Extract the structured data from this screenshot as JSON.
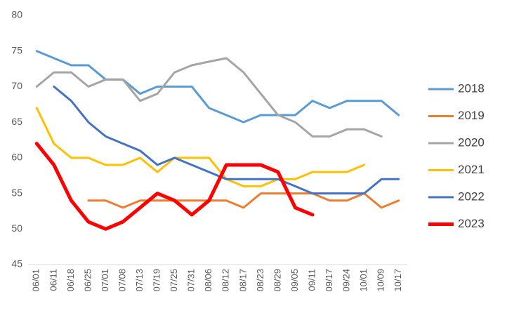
{
  "chart_data": {
    "type": "line",
    "categories": [
      "06/01",
      "06/11",
      "06/18",
      "06/25",
      "07/01",
      "07/08",
      "07/13",
      "07/19",
      "07/25",
      "07/31",
      "08/06",
      "08/12",
      "08/17",
      "08/23",
      "08/29",
      "09/05",
      "09/11",
      "09/17",
      "09/24",
      "10/01",
      "10/09",
      "10/17"
    ],
    "series": [
      {
        "name": "2018",
        "color": "#5b9bd5",
        "values": [
          75,
          74,
          73,
          73,
          71,
          71,
          69,
          70,
          70,
          70,
          67,
          66,
          65,
          66,
          66,
          66,
          68,
          67,
          68,
          68,
          68,
          66
        ]
      },
      {
        "name": "2019",
        "color": "#ed7d31",
        "values": [
          null,
          null,
          null,
          54,
          54,
          53,
          54,
          54,
          54,
          54,
          54,
          54,
          53,
          55,
          55,
          55,
          55,
          54,
          54,
          55,
          53,
          54
        ]
      },
      {
        "name": "2020",
        "color": "#a5a5a5",
        "values": [
          70,
          72,
          72,
          70,
          71,
          71,
          68,
          69,
          72,
          73,
          73.5,
          74,
          72,
          69,
          66,
          65,
          63,
          63,
          64,
          64,
          63,
          null
        ]
      },
      {
        "name": "2021",
        "color": "#ffc000",
        "values": [
          67,
          62,
          60,
          60,
          59,
          59,
          60,
          58,
          60,
          60,
          60,
          57,
          56,
          56,
          57,
          57,
          58,
          58,
          58,
          59,
          null,
          null
        ]
      },
      {
        "name": "2022",
        "color": "#4472c4",
        "values": [
          null,
          70,
          68,
          65,
          63,
          62,
          61,
          59,
          60,
          59,
          58,
          57,
          57,
          57,
          57,
          56,
          55,
          55,
          55,
          55,
          57,
          57
        ]
      },
      {
        "name": "2023",
        "color": "#ff0000",
        "values": [
          62,
          59,
          54,
          51,
          50,
          51,
          53,
          55,
          54,
          52,
          54,
          59,
          59,
          59,
          58,
          53,
          52,
          null,
          null,
          null,
          null,
          null
        ]
      }
    ],
    "ylim": [
      45,
      80
    ],
    "yticks": [
      45,
      50,
      55,
      60,
      65,
      70,
      75,
      80
    ],
    "grid": false,
    "legend": "right"
  }
}
